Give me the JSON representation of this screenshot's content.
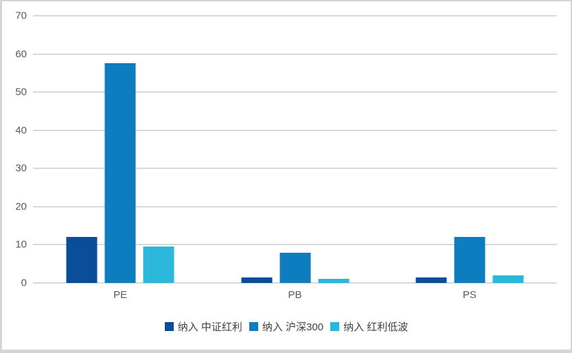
{
  "chart_data": {
    "type": "bar",
    "title": "",
    "xlabel": "",
    "ylabel": "",
    "categories": [
      "PE",
      "PB",
      "PS"
    ],
    "series": [
      {
        "name": "纳入 中证红利",
        "color": "#0a4e9a",
        "values": [
          12,
          1.5,
          1.5
        ]
      },
      {
        "name": "纳入 沪深300",
        "color": "#0d7dbf",
        "values": [
          57.5,
          8,
          12
        ]
      },
      {
        "name": "纳入 红利低波",
        "color": "#2bb6db",
        "values": [
          9.5,
          1,
          2
        ]
      }
    ],
    "ylim": [
      0,
      70
    ],
    "yticks": [
      0,
      10,
      20,
      30,
      40,
      50,
      60,
      70
    ],
    "grid": true,
    "legend_position": "bottom"
  },
  "styles": {
    "background": "#ffffff",
    "border_color": "#d5d5d5",
    "gridline_color": "#d9d9d9",
    "axis_label_color": "#595959",
    "legend_text_color": "#404040"
  }
}
